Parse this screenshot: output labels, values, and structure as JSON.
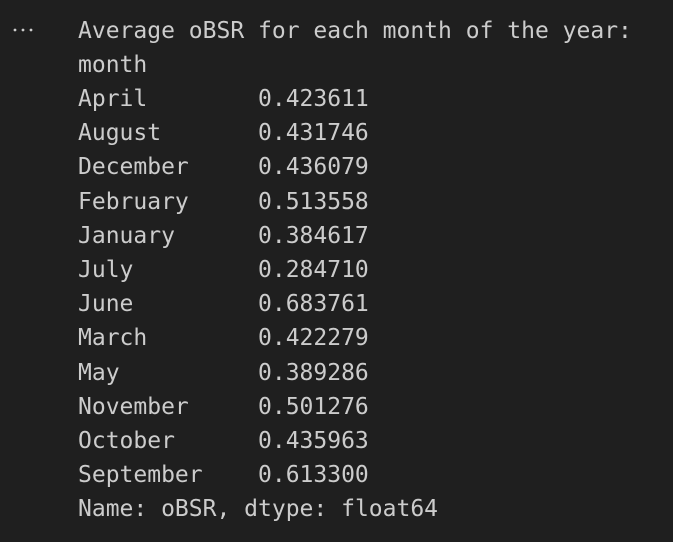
{
  "output": {
    "title": "Average oBSR for each month of the year:",
    "index_name": "month",
    "rows": [
      {
        "label": "April",
        "value": "0.423611"
      },
      {
        "label": "August",
        "value": "0.431746"
      },
      {
        "label": "December",
        "value": "0.436079"
      },
      {
        "label": "February",
        "value": "0.513558"
      },
      {
        "label": "January",
        "value": "0.384617"
      },
      {
        "label": "July",
        "value": "0.284710"
      },
      {
        "label": "June",
        "value": "0.683761"
      },
      {
        "label": "March",
        "value": "0.422279"
      },
      {
        "label": "May",
        "value": "0.389286"
      },
      {
        "label": "November",
        "value": "0.501276"
      },
      {
        "label": "October",
        "value": "0.435963"
      },
      {
        "label": "September",
        "value": "0.613300"
      }
    ],
    "footer": "Name: oBSR, dtype: float64"
  }
}
